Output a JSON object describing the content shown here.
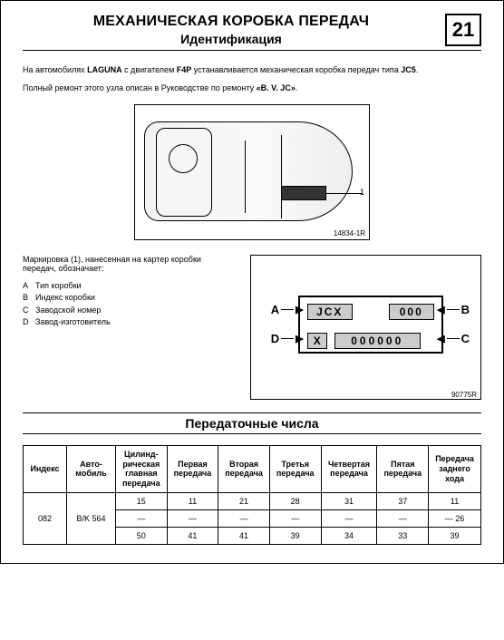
{
  "header": {
    "title": "МЕХАНИЧЕСКАЯ КОРОБКА ПЕРЕДАЧ",
    "subtitle": "Идентификация",
    "chapter": "21"
  },
  "intro": {
    "line1_pre": "На автомобилях ",
    "line1_model": "LAGUNA",
    "line1_mid": " с двигателем ",
    "line1_engine": "F4P",
    "line1_post": " устанавливается механическая коробка передач типа ",
    "line1_type": "JC5",
    "line1_end": ".",
    "line2_pre": "Полный ремонт этого узла описан в Руководстве по ремонту ",
    "line2_manual": "«B. V. JC»",
    "line2_end": "."
  },
  "figure": {
    "label": "14834-1R",
    "lead_number": "1"
  },
  "legend": {
    "intro": "Маркировка (1), нанесенная на картер коробки передач, обозначает:",
    "items": [
      {
        "letter": "A",
        "text": "Тип коробки"
      },
      {
        "letter": "B",
        "text": "Индекс коробки"
      },
      {
        "letter": "C",
        "text": "Заводской номер"
      },
      {
        "letter": "D",
        "text": "Завод-изготовитель"
      }
    ]
  },
  "plate": {
    "A": "A",
    "B": "B",
    "C": "C",
    "D": "D",
    "jcx": "JCX",
    "z3": "000",
    "x": "X",
    "z6": "000000",
    "fig_label": "90775R"
  },
  "ratios": {
    "section_title": "Передаточные числа",
    "headers": {
      "index": "Индекс",
      "auto": "Авто-\nмобиль",
      "final": "Цилинд-\nрическая\nглавная\nпередача",
      "g1": "Первая\nпередача",
      "g2": "Вторая\nпередача",
      "g3": "Третья\nпередача",
      "g4": "Четвертая\nпередача",
      "g5": "Пятая\nпередача",
      "rev": "Передача\nзаднего\nхода"
    },
    "index": "082",
    "auto": "B/K 564",
    "rows": [
      {
        "final": "15",
        "g1": "11",
        "g2": "21",
        "g3": "28",
        "g4": "31",
        "g5": "37",
        "rev": "11"
      },
      {
        "final": "—",
        "g1": "—",
        "g2": "—",
        "g3": "—",
        "g4": "—",
        "g5": "—",
        "rev": "— 26"
      },
      {
        "final": "50",
        "g1": "41",
        "g2": "41",
        "g3": "39",
        "g4": "34",
        "g5": "33",
        "rev": "39"
      }
    ]
  }
}
